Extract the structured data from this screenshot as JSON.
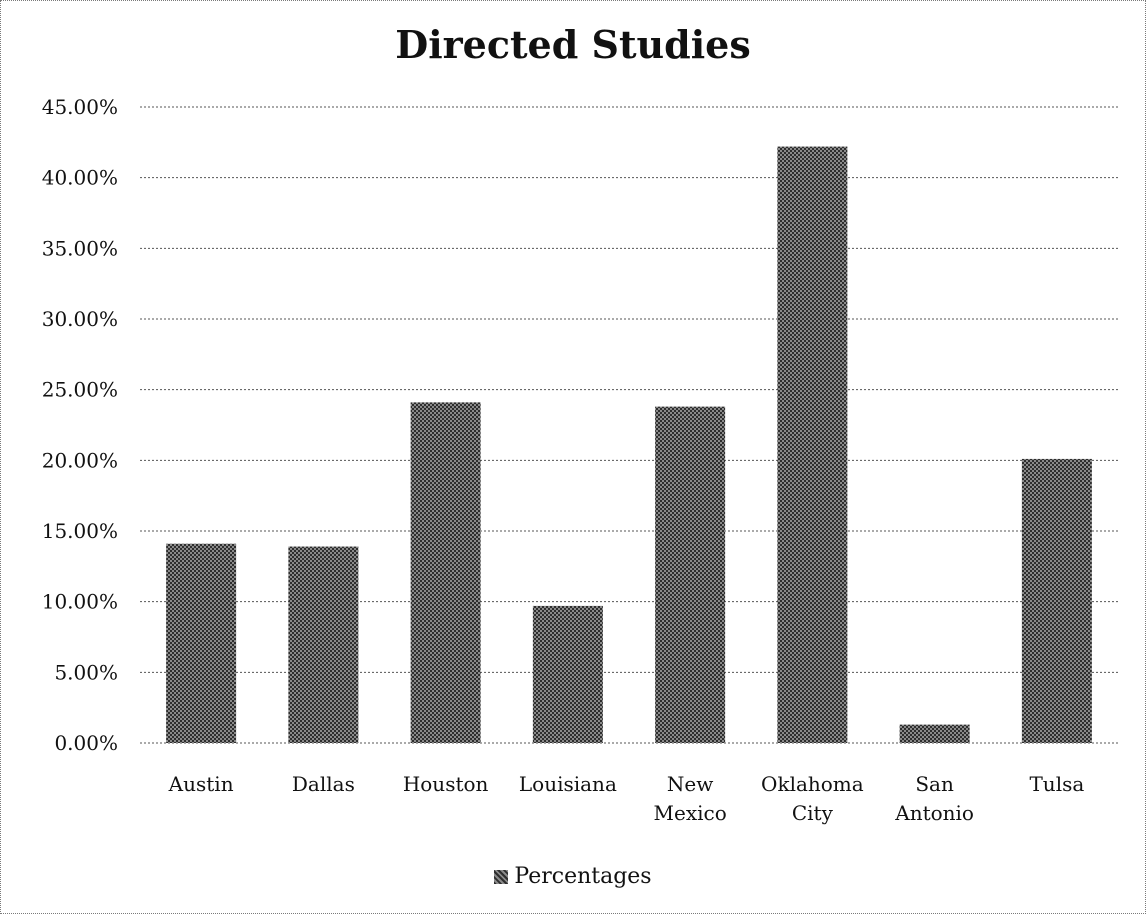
{
  "chart_data": {
    "type": "bar",
    "title": "Directed Studies",
    "xlabel": "",
    "ylabel": "",
    "categories": [
      [
        "Austin"
      ],
      [
        "Dallas"
      ],
      [
        "Houston"
      ],
      [
        "Louisiana"
      ],
      [
        "New",
        "Mexico"
      ],
      [
        "Oklahoma",
        "City"
      ],
      [
        "San",
        "Antonio"
      ],
      [
        "Tulsa"
      ]
    ],
    "series": [
      {
        "name": "Percentages",
        "values": [
          14.1,
          13.9,
          24.1,
          9.7,
          23.8,
          42.2,
          1.3,
          20.1
        ]
      }
    ],
    "ylim": [
      0,
      45
    ],
    "yticks": [
      0,
      5,
      10,
      15,
      20,
      25,
      30,
      35,
      40,
      45
    ],
    "ytick_labels": [
      "0.00%",
      "5.00%",
      "10.00%",
      "15.00%",
      "20.00%",
      "25.00%",
      "30.00%",
      "35.00%",
      "40.00%",
      "45.00%"
    ],
    "grid": true,
    "legend": "bottom",
    "bar_color": "#5c5c5c"
  }
}
